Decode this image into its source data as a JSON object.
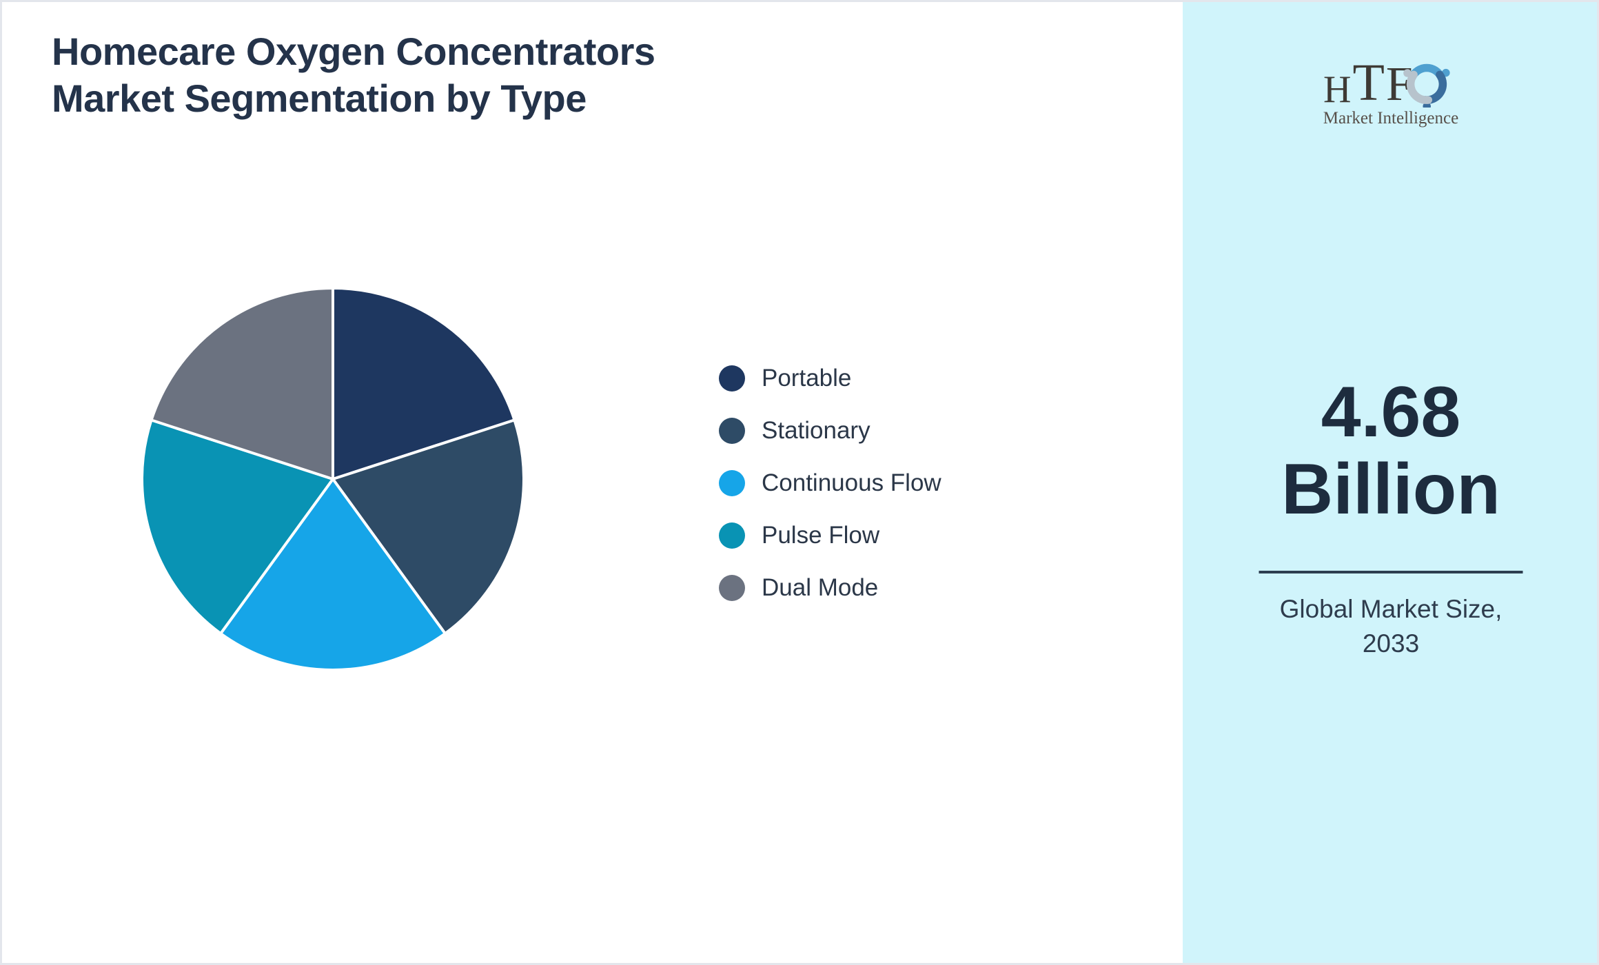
{
  "title": {
    "line1": "Homecare Oxygen Concentrators",
    "line2": "Market Segmentation by Type"
  },
  "chart_data": {
    "type": "pie",
    "title": "Homecare Oxygen Concentrators Market Segmentation by Type",
    "labels": [
      "Portable",
      "Stationary",
      "Continuous Flow",
      "Pulse Flow",
      "Dual Mode"
    ],
    "values": [
      20,
      20,
      20,
      20,
      20
    ],
    "values_unit": "%",
    "colors": [
      "#1e3760",
      "#2e4b66",
      "#16a5e8",
      "#0993b4",
      "#6b7280"
    ],
    "start_angle_deg": 0,
    "direction": "clockwise",
    "slice_border_color": "#ffffff",
    "legend_position": "right"
  },
  "sidebar": {
    "background": "#d0f4fb",
    "logo": {
      "brand": "HTF",
      "brand_letters": [
        "H",
        "T",
        "F"
      ],
      "subtitle": "Market Intelligence",
      "swirl_colors": [
        "#4fa0d0",
        "#3a6d9d",
        "#b7c3cc"
      ]
    },
    "stat": {
      "value": "4.68",
      "unit": "Billion"
    },
    "divider_color": "#2d3e50",
    "caption": {
      "line1": "Global Market Size,",
      "line2": "2033"
    }
  }
}
